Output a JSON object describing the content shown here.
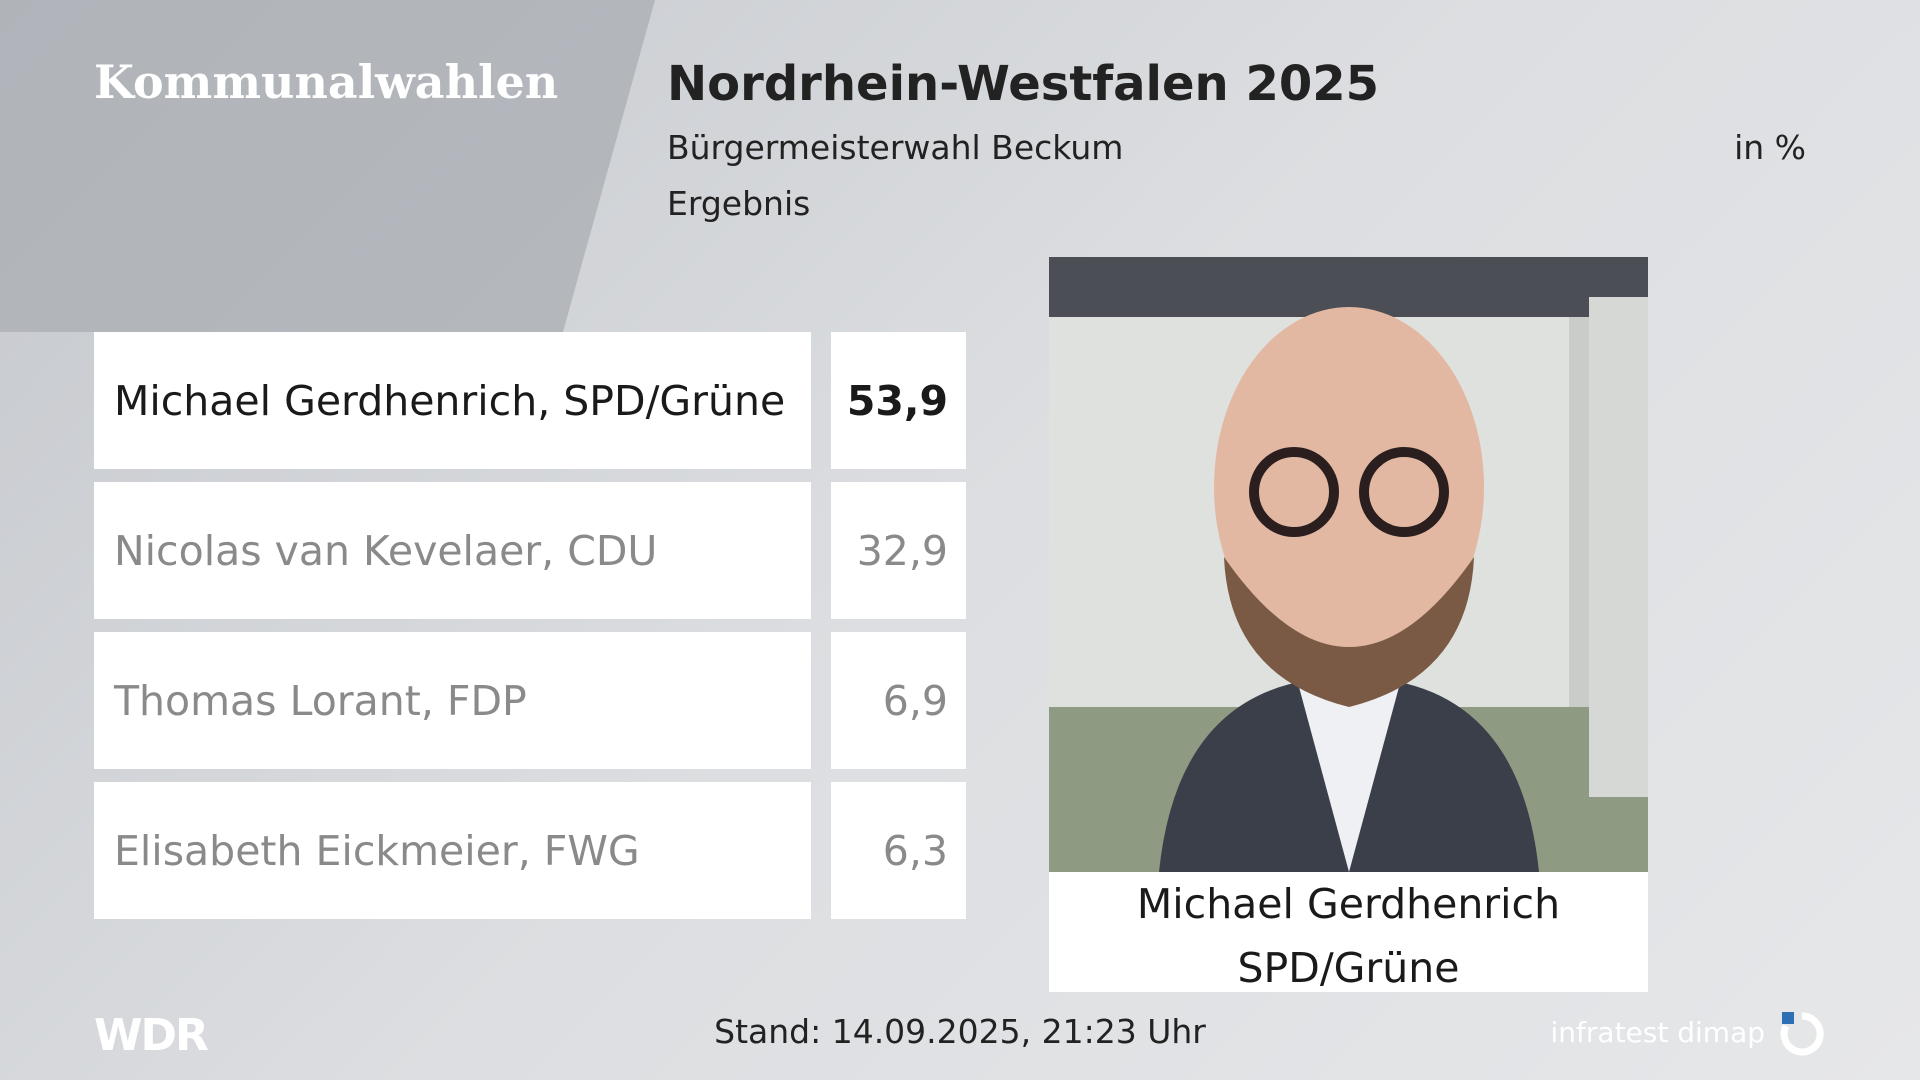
{
  "header": {
    "category": "Kommunalwahlen",
    "title": "Nordrhein-Westfalen 2025",
    "subtitle": "Bürgermeisterwahl Beckum",
    "unit": "in %",
    "status": "Ergebnis"
  },
  "table": {
    "rows": [
      [
        "Michael Gerdhenrich, SPD/Grüne",
        "53,9"
      ],
      [
        "Nicolas van Kevelaer, CDU",
        "32,9"
      ],
      [
        "Thomas Lorant, FDP",
        "6,9"
      ],
      [
        "Elisabeth Eickmeier, FWG",
        "6,3"
      ]
    ]
  },
  "winner": {
    "name": "Michael Gerdhenrich",
    "party": "SPD/Grüne"
  },
  "footer": {
    "broadcaster": "WDR",
    "timestamp": "Stand: 14.09.2025, 21:23 Uhr",
    "provider": "infratest dimap"
  }
}
